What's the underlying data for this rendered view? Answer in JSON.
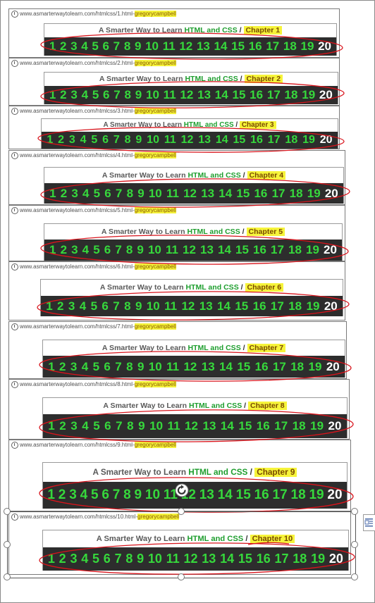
{
  "url_prefix": "www.asmarterwaytolearn.com/htmlcss/",
  "url_suffix": ".html-",
  "username": "gregorycampbell",
  "title_part1": "A Smarter Way to Learn ",
  "title_part2": "HTML and CSS",
  "title_sep": " / ",
  "chapter_label": "Chapter",
  "pages": [
    "1",
    "2",
    "3",
    "4",
    "5",
    "6",
    "7",
    "8",
    "9",
    "10",
    "11",
    "12",
    "13",
    "14",
    "15",
    "16",
    "17",
    "18",
    "19",
    "20"
  ],
  "current_page": "20",
  "panels": [
    {
      "chapter": "1"
    },
    {
      "chapter": "2"
    },
    {
      "chapter": "3"
    },
    {
      "chapter": "4"
    },
    {
      "chapter": "5"
    },
    {
      "chapter": "6"
    },
    {
      "chapter": "7"
    },
    {
      "chapter": "8"
    },
    {
      "chapter": "9"
    },
    {
      "chapter": "10"
    }
  ],
  "colors": {
    "link_green": "#36d83c",
    "title_green": "#1e9e2e",
    "highlight_yellow": "#f6f43a",
    "nav_bar_dark": "#2d2d2d",
    "annotation_red": "#d8141c"
  },
  "icons": [
    "page-info-icon",
    "rotate-handle-icon",
    "layout-options-icon"
  ]
}
